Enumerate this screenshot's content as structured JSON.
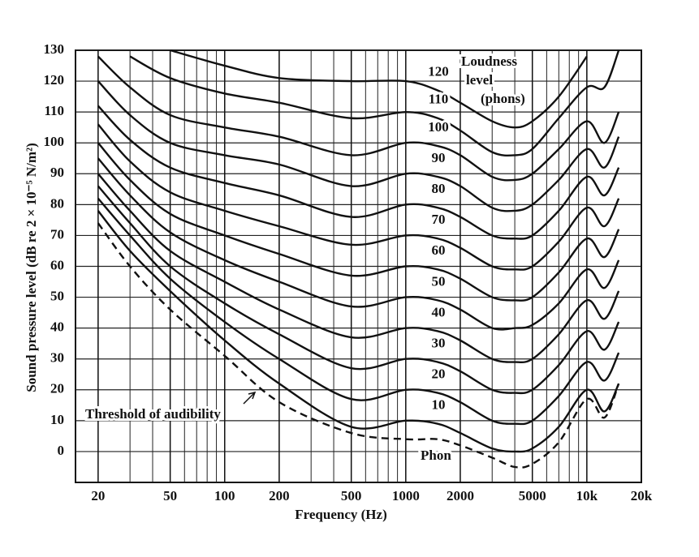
{
  "chart_data": {
    "type": "line",
    "x_label": "Frequency (Hz)",
    "y_label": "Sound pressure level (dB re 2 × 10⁻⁵ N/m²)",
    "loudness_label": [
      "Loudness",
      "level",
      "(phons)"
    ],
    "phon_label": "Phon",
    "x": [
      20,
      30,
      50,
      100,
      200,
      500,
      1000,
      1500,
      2000,
      3000,
      4000,
      5000,
      7000,
      10000,
      12500,
      15000
    ],
    "log_x": true,
    "grid": true,
    "xlim": [
      15,
      20000
    ],
    "ylim": [
      -10,
      130
    ],
    "xticks": [
      20,
      50,
      100,
      200,
      500,
      1000,
      2000,
      5000,
      {
        "value": 10000,
        "label": "10k"
      },
      {
        "value": 20000,
        "label": "20k"
      }
    ],
    "yticks": [
      0,
      10,
      20,
      30,
      40,
      50,
      60,
      70,
      80,
      90,
      100,
      110,
      120,
      130
    ],
    "series": [
      {
        "name": "120",
        "color": "#111111",
        "values": [
          null,
          null,
          130,
          125,
          121,
          120,
          120,
          117,
          113,
          107,
          105,
          107,
          115,
          128,
          null,
          null
        ]
      },
      {
        "name": "110",
        "color": "#111111",
        "values": [
          null,
          128,
          121,
          116,
          113,
          108,
          110,
          108,
          104,
          97,
          96,
          98,
          108,
          118,
          118,
          130
        ]
      },
      {
        "name": "100",
        "color": "#111111",
        "values": [
          128,
          118,
          109,
          105,
          102,
          96,
          100,
          99,
          96,
          89,
          88,
          90,
          98,
          107,
          100,
          110
        ]
      },
      {
        "name": "90",
        "color": "#111111",
        "values": [
          120,
          109,
          100,
          96,
          93,
          86,
          90,
          89,
          86,
          79,
          78,
          80,
          88,
          98,
          92,
          102
        ]
      },
      {
        "name": "80",
        "color": "#111111",
        "values": [
          112,
          101,
          92,
          87,
          83,
          76,
          80,
          79,
          76,
          70,
          69,
          70,
          78,
          89,
          83,
          92
        ]
      },
      {
        "name": "70",
        "color": "#111111",
        "values": [
          106,
          94,
          84,
          78,
          73,
          67,
          70,
          69,
          66,
          60,
          59,
          60,
          68,
          79,
          73,
          82
        ]
      },
      {
        "name": "60",
        "color": "#111111",
        "values": [
          100,
          88,
          77,
          70,
          64,
          57,
          60,
          59,
          56,
          50,
          49,
          50,
          58,
          69,
          63,
          72
        ]
      },
      {
        "name": "50",
        "color": "#111111",
        "values": [
          95,
          83,
          71,
          62,
          55,
          47,
          50,
          49,
          46,
          40,
          40,
          41,
          48,
          59,
          53,
          62
        ]
      },
      {
        "name": "40",
        "color": "#111111",
        "values": [
          90,
          78,
          65,
          55,
          46,
          37,
          40,
          39,
          36,
          30,
          29,
          30,
          38,
          49,
          43,
          52
        ]
      },
      {
        "name": "30",
        "color": "#111111",
        "values": [
          86,
          74,
          60,
          48,
          38,
          27,
          30,
          29,
          26,
          20,
          19,
          20,
          28,
          39,
          33,
          42
        ]
      },
      {
        "name": "20",
        "color": "#111111",
        "values": [
          82,
          70,
          56,
          42,
          30,
          17,
          20,
          19,
          16,
          10,
          9,
          10,
          18,
          29,
          23,
          32
        ]
      },
      {
        "name": "10",
        "color": "#111111",
        "values": [
          78,
          65,
          52,
          36,
          22,
          8,
          10,
          9,
          6,
          1,
          0,
          1,
          8,
          20,
          13,
          22
        ]
      },
      {
        "name": "Threshold of audibility",
        "color": "#111111",
        "dashed": true,
        "values": [
          74,
          60,
          46,
          31,
          16,
          6,
          4,
          4,
          2,
          -2,
          -5,
          -4,
          3,
          17,
          11,
          22
        ]
      }
    ]
  }
}
